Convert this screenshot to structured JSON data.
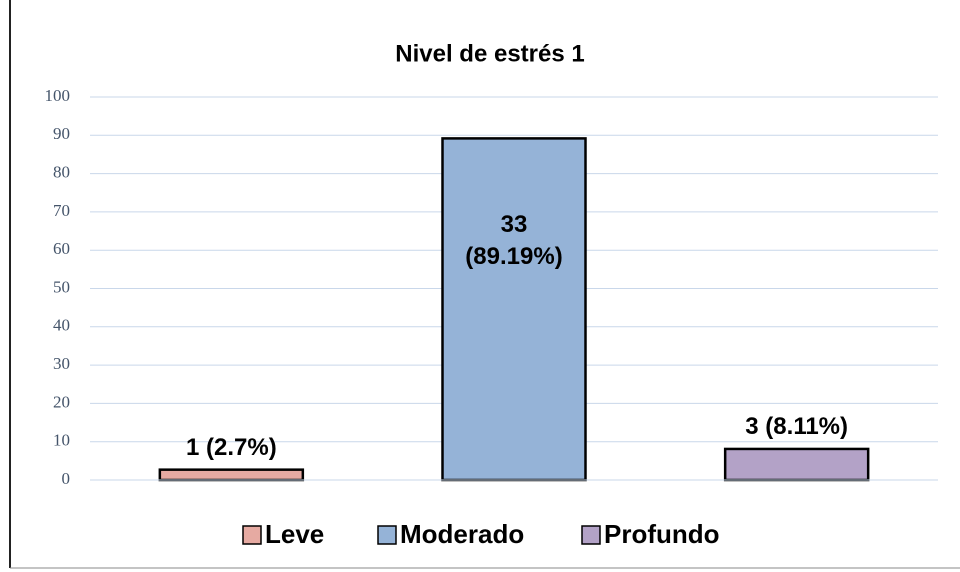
{
  "chart_data": {
    "type": "bar",
    "title": "Nivel de estrés 1",
    "series": [
      {
        "name": "Leve",
        "color": "#e6aaa2",
        "values": [
          2.7
        ],
        "value_labels": [
          "1 (2.7%)"
        ]
      },
      {
        "name": "Moderado",
        "color": "#95b3d7",
        "values": [
          89.19
        ],
        "value_labels": [
          "33\n(89.19%)"
        ]
      },
      {
        "name": "Profundo",
        "color": "#b3a2c7",
        "values": [
          8.11
        ],
        "value_labels": [
          "3 (8.11%)"
        ]
      }
    ],
    "ylim": [
      0,
      100
    ],
    "yticks": [
      0,
      10,
      20,
      30,
      40,
      50,
      60,
      70,
      80,
      90,
      100
    ],
    "grid": true,
    "legend": "bottom"
  }
}
